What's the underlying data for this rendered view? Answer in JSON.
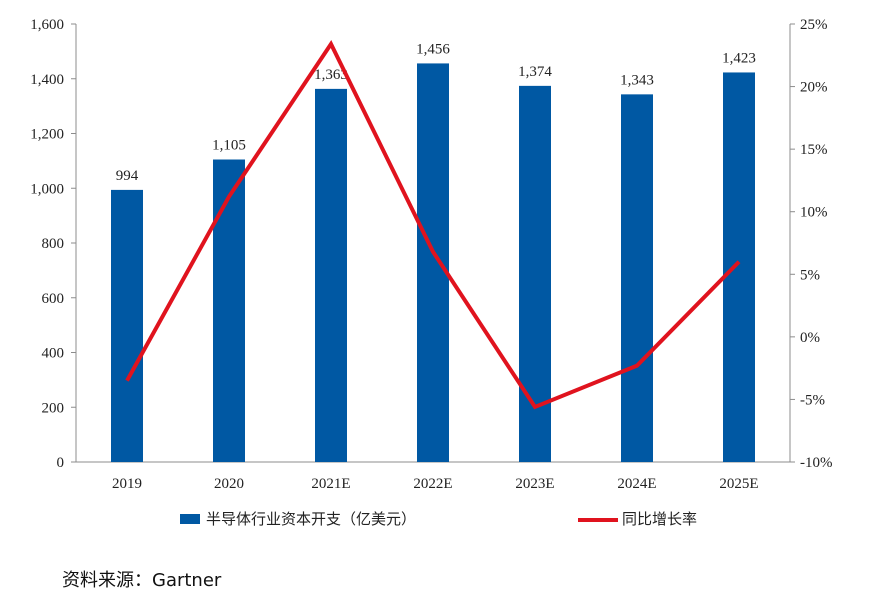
{
  "chart_data": {
    "type": "bar",
    "categories": [
      "2019",
      "2020",
      "2021E",
      "2022E",
      "2023E",
      "2024E",
      "2025E"
    ],
    "series": [
      {
        "name": "半导体行业资本开支（亿美元）",
        "type": "bar",
        "axis": "left",
        "values": [
          994,
          1105,
          1363,
          1456,
          1374,
          1343,
          1423
        ],
        "data_labels": [
          "994",
          "1,105",
          "1,363",
          "1,456",
          "1,374",
          "1,343",
          "1,423"
        ],
        "color": "#0058A3"
      },
      {
        "name": "同比增长率",
        "type": "line",
        "axis": "right",
        "values": [
          -3.5,
          11.2,
          23.4,
          6.8,
          -5.6,
          -2.3,
          6.0
        ],
        "color": "#E0131E"
      }
    ],
    "y_left": {
      "lim": [
        0,
        1600
      ],
      "ticks": [
        0,
        200,
        400,
        600,
        800,
        1000,
        1200,
        1400,
        1600
      ],
      "tick_labels": [
        "0",
        "200",
        "400",
        "600",
        "800",
        "1,000",
        "1,200",
        "1,400",
        "1,600"
      ]
    },
    "y_right": {
      "lim": [
        -10,
        25
      ],
      "ticks": [
        -10,
        -5,
        0,
        5,
        10,
        15,
        20,
        25
      ],
      "tick_labels": [
        "-10%",
        "-5%",
        "0%",
        "5%",
        "10%",
        "15%",
        "20%",
        "25%"
      ]
    },
    "grid": false,
    "legend_position": "bottom"
  },
  "source_text": "资料来源：Gartner"
}
